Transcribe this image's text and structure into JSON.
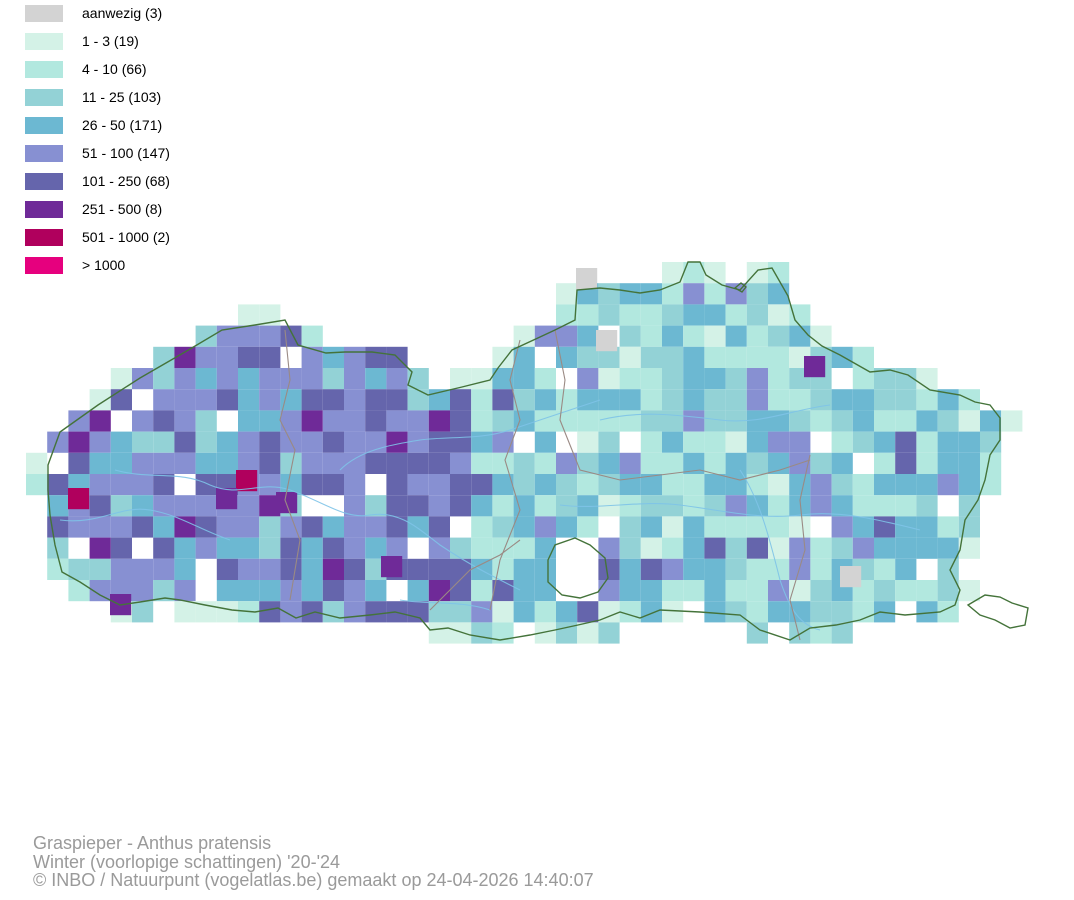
{
  "legend": {
    "items": [
      {
        "label": "aanwezig (3)",
        "color": "#d3d3d3"
      },
      {
        "label": "1 - 3 (19)",
        "color": "#d4f2e7"
      },
      {
        "label": "4 - 10 (66)",
        "color": "#b2e8df"
      },
      {
        "label": "11 - 25 (103)",
        "color": "#93d2d6"
      },
      {
        "label": "26 - 50 (171)",
        "color": "#6cb8d2"
      },
      {
        "label": "51 - 100 (147)",
        "color": "#8790d2"
      },
      {
        "label": "101 - 250 (68)",
        "color": "#6565ac"
      },
      {
        "label": "251 - 500 (8)",
        "color": "#6f2a98"
      },
      {
        "label": "501 - 1000 (2)",
        "color": "#b0005d"
      },
      {
        "label": "> 1000",
        "color": "#e6007e"
      }
    ]
  },
  "map": {
    "border_color": "#44733a",
    "river_color": "#7fc4e8",
    "district_color": "#9a8a84"
  },
  "caption": {
    "species": "Graspieper - Anthus pratensis",
    "period": "Winter (voorlopige schattingen) '20-'24",
    "credit": "© INBO / Natuurpunt (vogelatlas.be) gemaakt op 24-04-2026 14:40:07"
  }
}
